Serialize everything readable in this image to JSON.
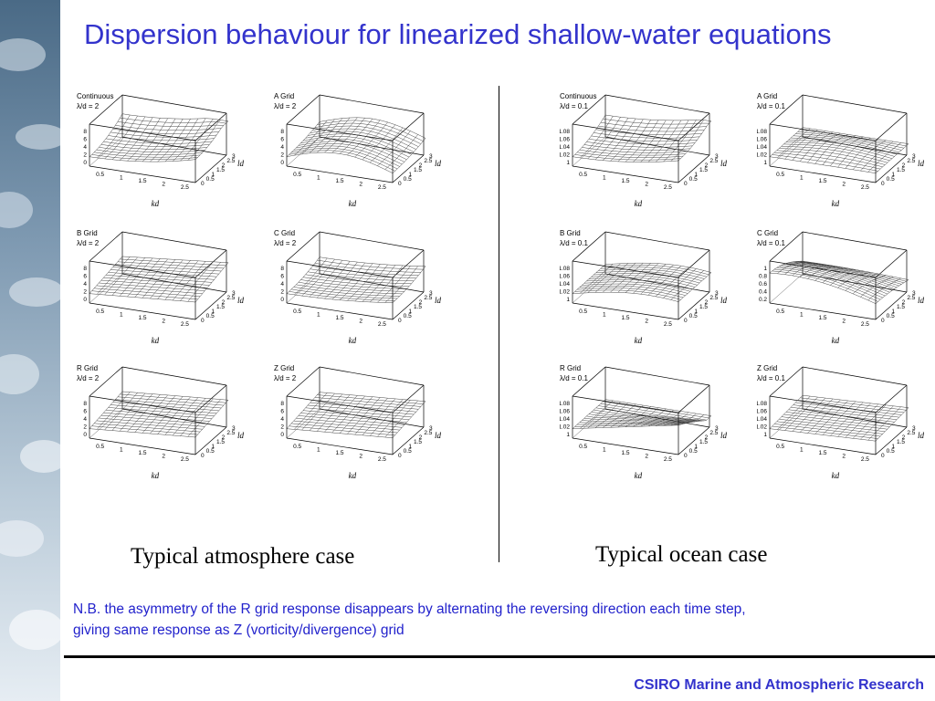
{
  "title": "Dispersion behaviour for linearized shallow-water equations",
  "left_caption": "Typical atmosphere case",
  "right_caption": "Typical ocean case",
  "note_line1": "N.B. the asymmetry of the R grid response disappears by alternating the reversing direction each time step,",
  "note_line2": "giving same response as Z (vorticity/divergence) grid",
  "footer": "CSIRO Marine and Atmospheric Research",
  "axis_labels": {
    "kd": "kd",
    "ld": "ld"
  },
  "panels": [
    {
      "name": "Continuous",
      "param": "λ/d = 2",
      "zticks": [
        "8",
        "6",
        "4",
        "2",
        "0"
      ],
      "kticks": [
        "0.5",
        "1",
        "1.5",
        "2",
        "2.5"
      ],
      "lticks": [
        "0",
        "0.5",
        "1",
        "1.5",
        "2",
        "2.5",
        "3"
      ]
    },
    {
      "name": "A Grid",
      "param": "λ/d = 2",
      "zticks": [
        "8",
        "6",
        "4",
        "2",
        "0"
      ],
      "kticks": [
        "0.5",
        "1",
        "1.5",
        "2",
        "2.5"
      ],
      "lticks": [
        "0",
        "0.5",
        "1",
        "1.5",
        "2",
        "2.5",
        "3"
      ]
    },
    {
      "name": "B Grid",
      "param": "λ/d = 2",
      "zticks": [
        "8",
        "6",
        "4",
        "2",
        "0"
      ],
      "kticks": [
        "0.5",
        "1",
        "1.5",
        "2",
        "2.5"
      ],
      "lticks": [
        "0",
        "0.5",
        "1",
        "1.5",
        "2",
        "2.5",
        "3"
      ]
    },
    {
      "name": "C Grid",
      "param": "λ/d = 2",
      "zticks": [
        "8",
        "6",
        "4",
        "2",
        "0"
      ],
      "kticks": [
        "0.5",
        "1",
        "1.5",
        "2",
        "2.5"
      ],
      "lticks": [
        "0",
        "0.5",
        "1",
        "1.5",
        "2",
        "2.5",
        "3"
      ]
    },
    {
      "name": "R Grid",
      "param": "λ/d = 2",
      "zticks": [
        "8",
        "6",
        "4",
        "2",
        "0"
      ],
      "kticks": [
        "0.5",
        "1",
        "1.5",
        "2",
        "2.5"
      ],
      "lticks": [
        "0",
        "0.5",
        "1",
        "1.5",
        "2",
        "2.5",
        "3"
      ]
    },
    {
      "name": "Z Grid",
      "param": "λ/d = 2",
      "zticks": [
        "8",
        "6",
        "4",
        "2",
        "0"
      ],
      "kticks": [
        "0.5",
        "1",
        "1.5",
        "2",
        "2.5"
      ],
      "lticks": [
        "0",
        "0.5",
        "1",
        "1.5",
        "2",
        "2.5",
        "3"
      ]
    },
    {
      "name": "Continuous",
      "param": "λ/d = 0.1",
      "zticks": [
        "1.08",
        "1.06",
        "1.04",
        "1.02",
        "1"
      ],
      "kticks": [
        "0.5",
        "1",
        "1.5",
        "2",
        "2.5"
      ],
      "lticks": [
        "0",
        "0.5",
        "1",
        "1.5",
        "2",
        "2.5",
        "3"
      ]
    },
    {
      "name": "A Grid",
      "param": "λ/d = 0.1",
      "zticks": [
        "1.08",
        "1.06",
        "1.04",
        "1.02",
        "1"
      ],
      "kticks": [
        "0.5",
        "1",
        "1.5",
        "2",
        "2.5"
      ],
      "lticks": [
        "0",
        "0.5",
        "1",
        "1.5",
        "2",
        "2.5",
        "3"
      ]
    },
    {
      "name": "B Grid",
      "param": "λ/d = 0.1",
      "zticks": [
        "1.08",
        "1.06",
        "1.04",
        "1.02",
        "1"
      ],
      "kticks": [
        "0.5",
        "1",
        "1.5",
        "2",
        "2.5"
      ],
      "lticks": [
        "0",
        "0.5",
        "1",
        "1.5",
        "2",
        "2.5",
        "3"
      ]
    },
    {
      "name": "C Grid",
      "param": "λ/d = 0.1",
      "zticks": [
        "1",
        "0.8",
        "0.6",
        "0.4",
        "0.2"
      ],
      "kticks": [
        "0.5",
        "1",
        "1.5",
        "2",
        "2.5"
      ],
      "lticks": [
        "0",
        "0.5",
        "1",
        "1.5",
        "2",
        "2.5",
        "3"
      ]
    },
    {
      "name": "R Grid",
      "param": "λ/d = 0.1",
      "zticks": [
        "1.08",
        "1.06",
        "1.04",
        "1.02",
        "1"
      ],
      "kticks": [
        "0.5",
        "1",
        "1.5",
        "2",
        "2.5"
      ],
      "lticks": [
        "0",
        "0.5",
        "1",
        "1.5",
        "2",
        "2.5",
        "3"
      ]
    },
    {
      "name": "Z Grid",
      "param": "λ/d = 0.1",
      "zticks": [
        "1.08",
        "1.06",
        "1.04",
        "1.02",
        "1"
      ],
      "kticks": [
        "0.5",
        "1",
        "1.5",
        "2",
        "2.5"
      ],
      "lticks": [
        "0",
        "0.5",
        "1",
        "1.5",
        "2",
        "2.5",
        "3"
      ]
    }
  ]
}
